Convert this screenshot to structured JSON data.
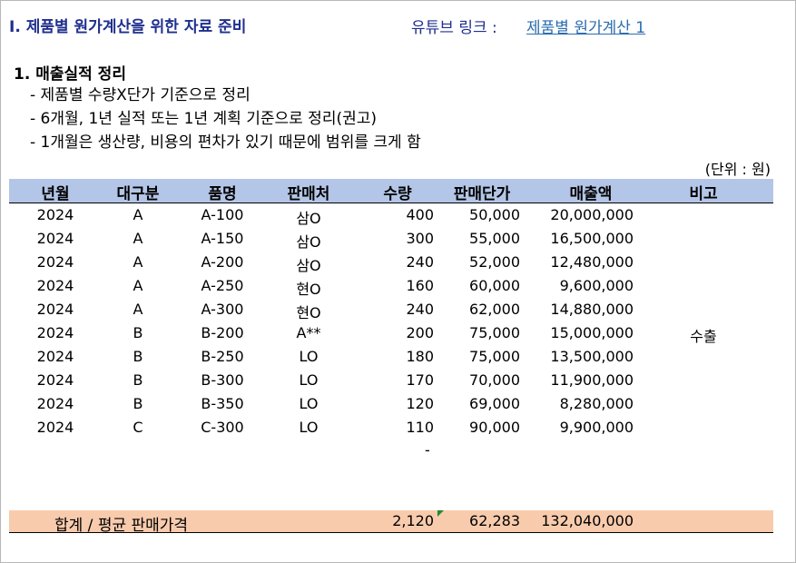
{
  "title": "I. 제품별 원가계산을 위한 자료 준비",
  "youtube": {
    "label": "유튜브 링크 :",
    "link_text": "제품별 원가계산 1"
  },
  "section": {
    "heading": "1. 매출실적 정리",
    "bullets": [
      "- 제품별 수량X단가 기준으로 정리",
      "- 6개월, 1년 실적 또는 1년 계획 기준으로 정리(권고)",
      "- 1개월은 생산량, 비용의 편차가 있기 때문에 범위를 크게 함"
    ]
  },
  "unit": "(단위 : 원)",
  "table": {
    "headers": {
      "year": "년월",
      "category": "대구분",
      "item": "품명",
      "vendor": "판매처",
      "qty": "수량",
      "price": "판매단가",
      "sales": "매출액",
      "note": "비고"
    },
    "rows": [
      {
        "year": "2024",
        "category": "A",
        "item": "A-100",
        "vendor": "삼O",
        "qty": "400",
        "price": "50,000",
        "sales": "20,000,000",
        "note": ""
      },
      {
        "year": "2024",
        "category": "A",
        "item": "A-150",
        "vendor": "삼O",
        "qty": "300",
        "price": "55,000",
        "sales": "16,500,000",
        "note": ""
      },
      {
        "year": "2024",
        "category": "A",
        "item": "A-200",
        "vendor": "삼O",
        "qty": "240",
        "price": "52,000",
        "sales": "12,480,000",
        "note": ""
      },
      {
        "year": "2024",
        "category": "A",
        "item": "A-250",
        "vendor": "현O",
        "qty": "160",
        "price": "60,000",
        "sales": "9,600,000",
        "note": ""
      },
      {
        "year": "2024",
        "category": "A",
        "item": "A-300",
        "vendor": "현O",
        "qty": "240",
        "price": "62,000",
        "sales": "14,880,000",
        "note": ""
      },
      {
        "year": "2024",
        "category": "B",
        "item": "B-200",
        "vendor": "A**",
        "qty": "200",
        "price": "75,000",
        "sales": "15,000,000",
        "note": "수출"
      },
      {
        "year": "2024",
        "category": "B",
        "item": "B-250",
        "vendor": "LO",
        "qty": "180",
        "price": "75,000",
        "sales": "13,500,000",
        "note": ""
      },
      {
        "year": "2024",
        "category": "B",
        "item": "B-300",
        "vendor": "LO",
        "qty": "170",
        "price": "70,000",
        "sales": "11,900,000",
        "note": ""
      },
      {
        "year": "2024",
        "category": "B",
        "item": "B-350",
        "vendor": "LO",
        "qty": "120",
        "price": "69,000",
        "sales": "8,280,000",
        "note": ""
      },
      {
        "year": "2024",
        "category": "C",
        "item": "C-300",
        "vendor": "LO",
        "qty": "110",
        "price": "90,000",
        "sales": "9,900,000",
        "note": ""
      }
    ],
    "dash": "-",
    "total": {
      "label": "합계 / 평균 판매가격",
      "qty": "2,120",
      "price": "62,283",
      "sales": "132,040,000"
    }
  },
  "colors": {
    "title": "#1f2f8f",
    "header_bg": "#b4c6e7",
    "total_bg": "#f8cbad",
    "link": "#2b6cb0"
  }
}
